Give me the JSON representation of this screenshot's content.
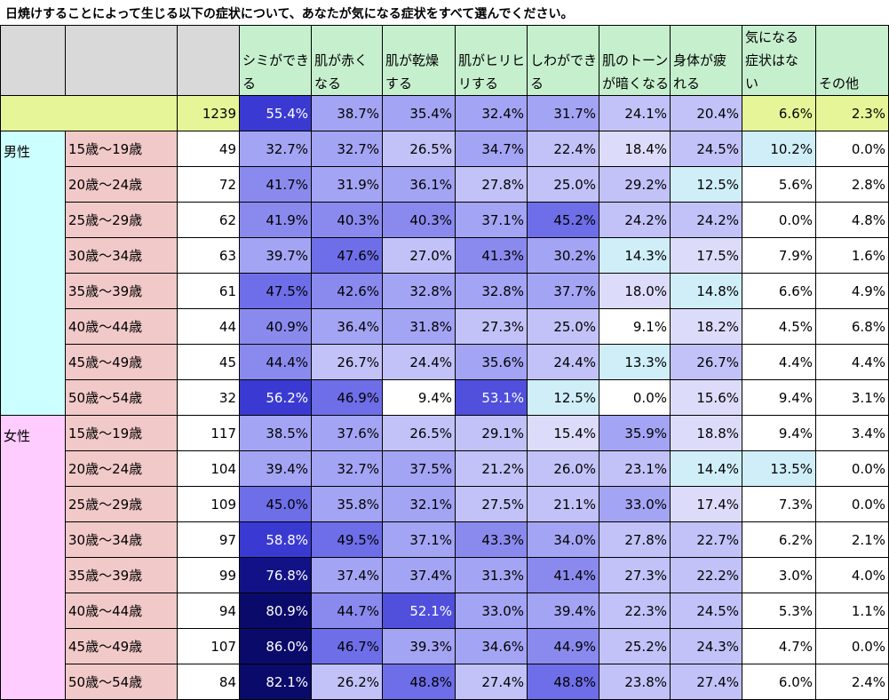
{
  "title": "日焼けすることによって生じる以下の症状について、あなたが気になる症状をすべて選んでください。",
  "chart_data": {
    "type": "table",
    "columns": [
      "シミができる",
      "肌が赤くなる",
      "肌が乾燥する",
      "肌がヒリヒリする",
      "しわができる",
      "肌のトーンが暗くなる",
      "身体が疲れる",
      "気になる症状はない",
      "その他"
    ],
    "column_lines": [
      [
        "シミができ",
        "る"
      ],
      [
        "肌が赤く",
        "なる"
      ],
      [
        "肌が乾燥",
        "する"
      ],
      [
        "肌がヒリヒ",
        "リする"
      ],
      [
        "しわができ",
        "る"
      ],
      [
        "肌のトーン",
        "が暗くなる"
      ],
      [
        "身体が疲",
        "れる"
      ],
      [
        "気になる",
        "症状はな",
        "い"
      ],
      [
        "その他"
      ]
    ],
    "total": {
      "n": "1239",
      "values": [
        "55.4%",
        "38.7%",
        "35.4%",
        "32.4%",
        "31.7%",
        "24.1%",
        "20.4%",
        "6.6%",
        "2.3%"
      ]
    },
    "groups": [
      {
        "gender": "男性",
        "rows": [
          {
            "age": "15歳～19歳",
            "n": "49",
            "values": [
              "32.7%",
              "32.7%",
              "26.5%",
              "34.7%",
              "22.4%",
              "18.4%",
              "24.5%",
              "10.2%",
              "0.0%"
            ]
          },
          {
            "age": "20歳～24歳",
            "n": "72",
            "values": [
              "41.7%",
              "31.9%",
              "36.1%",
              "27.8%",
              "25.0%",
              "29.2%",
              "12.5%",
              "5.6%",
              "2.8%"
            ]
          },
          {
            "age": "25歳～29歳",
            "n": "62",
            "values": [
              "41.9%",
              "40.3%",
              "40.3%",
              "37.1%",
              "45.2%",
              "24.2%",
              "24.2%",
              "0.0%",
              "4.8%"
            ]
          },
          {
            "age": "30歳～34歳",
            "n": "63",
            "values": [
              "39.7%",
              "47.6%",
              "27.0%",
              "41.3%",
              "30.2%",
              "14.3%",
              "17.5%",
              "7.9%",
              "1.6%"
            ]
          },
          {
            "age": "35歳～39歳",
            "n": "61",
            "values": [
              "47.5%",
              "42.6%",
              "32.8%",
              "32.8%",
              "37.7%",
              "18.0%",
              "14.8%",
              "6.6%",
              "4.9%"
            ]
          },
          {
            "age": "40歳～44歳",
            "n": "44",
            "values": [
              "40.9%",
              "36.4%",
              "31.8%",
              "27.3%",
              "25.0%",
              "9.1%",
              "18.2%",
              "4.5%",
              "6.8%"
            ]
          },
          {
            "age": "45歳～49歳",
            "n": "45",
            "values": [
              "44.4%",
              "26.7%",
              "24.4%",
              "35.6%",
              "24.4%",
              "13.3%",
              "26.7%",
              "4.4%",
              "4.4%"
            ]
          },
          {
            "age": "50歳～54歳",
            "n": "32",
            "values": [
              "56.2%",
              "46.9%",
              "9.4%",
              "53.1%",
              "12.5%",
              "0.0%",
              "15.6%",
              "9.4%",
              "3.1%"
            ]
          }
        ]
      },
      {
        "gender": "女性",
        "rows": [
          {
            "age": "15歳～19歳",
            "n": "117",
            "values": [
              "38.5%",
              "37.6%",
              "26.5%",
              "29.1%",
              "15.4%",
              "35.9%",
              "18.8%",
              "9.4%",
              "3.4%"
            ]
          },
          {
            "age": "20歳～24歳",
            "n": "104",
            "values": [
              "39.4%",
              "32.7%",
              "37.5%",
              "21.2%",
              "26.0%",
              "23.1%",
              "14.4%",
              "13.5%",
              "0.0%"
            ]
          },
          {
            "age": "25歳～29歳",
            "n": "109",
            "values": [
              "45.0%",
              "35.8%",
              "32.1%",
              "27.5%",
              "21.1%",
              "33.0%",
              "17.4%",
              "7.3%",
              "0.0%"
            ]
          },
          {
            "age": "30歳～34歳",
            "n": "97",
            "values": [
              "58.8%",
              "49.5%",
              "37.1%",
              "43.3%",
              "34.0%",
              "27.8%",
              "22.7%",
              "6.2%",
              "2.1%"
            ]
          },
          {
            "age": "35歳～39歳",
            "n": "99",
            "values": [
              "76.8%",
              "37.4%",
              "37.4%",
              "31.3%",
              "41.4%",
              "27.3%",
              "22.2%",
              "3.0%",
              "4.0%"
            ]
          },
          {
            "age": "40歳～44歳",
            "n": "94",
            "values": [
              "80.9%",
              "44.7%",
              "52.1%",
              "33.0%",
              "39.4%",
              "22.3%",
              "24.5%",
              "5.3%",
              "1.1%"
            ]
          },
          {
            "age": "45歳～49歳",
            "n": "107",
            "values": [
              "86.0%",
              "46.7%",
              "39.3%",
              "34.6%",
              "44.9%",
              "25.2%",
              "24.3%",
              "4.7%",
              "0.0%"
            ]
          },
          {
            "age": "50歳～54歳",
            "n": "84",
            "values": [
              "82.1%",
              "26.2%",
              "48.8%",
              "27.4%",
              "48.8%",
              "23.8%",
              "27.4%",
              "6.0%",
              "2.4%"
            ]
          }
        ]
      }
    ]
  }
}
